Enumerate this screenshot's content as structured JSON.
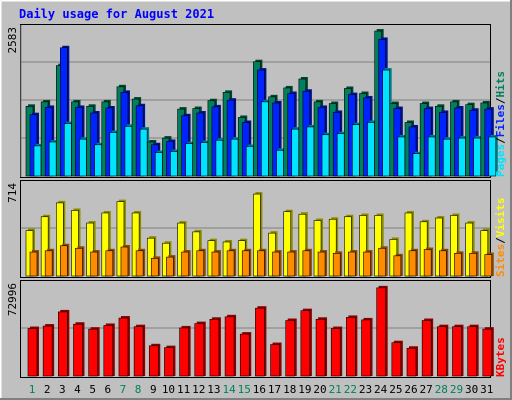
{
  "chart_data": [
    {
      "type": "bar",
      "title": "Daily usage for August 2021",
      "categories": [
        "1",
        "2",
        "3",
        "4",
        "5",
        "6",
        "7",
        "8",
        "9",
        "10",
        "11",
        "12",
        "13",
        "14",
        "15",
        "16",
        "17",
        "18",
        "19",
        "20",
        "21",
        "22",
        "23",
        "24",
        "25",
        "26",
        "27",
        "28",
        "29",
        "30",
        "31"
      ],
      "weekend_categories": [
        "1",
        "7",
        "8",
        "14",
        "15",
        "21",
        "22",
        "28",
        "29"
      ],
      "ymax_label": "2583",
      "ylim": [
        0,
        2583
      ],
      "grid": true,
      "series": [
        {
          "name": "Hits",
          "color": "#00805c",
          "values": [
            1250,
            1330,
            1980,
            1330,
            1250,
            1330,
            1600,
            1380,
            610,
            680,
            1200,
            1210,
            1350,
            1500,
            1050,
            2050,
            1420,
            1580,
            1740,
            1330,
            1300,
            1570,
            1480,
            2600,
            1300,
            960,
            1300,
            1250,
            1330,
            1280,
            1310
          ]
        },
        {
          "name": "Files",
          "color": "#0024ff",
          "values": [
            1100,
            1230,
            2300,
            1230,
            1130,
            1220,
            1500,
            1260,
            560,
            620,
            1080,
            1130,
            1240,
            1360,
            960,
            1900,
            1310,
            1480,
            1520,
            1230,
            1140,
            1460,
            1400,
            2450,
            1210,
            880,
            1210,
            1140,
            1220,
            1180,
            1200
          ]
        },
        {
          "name": "Pages",
          "color": "#00e4ff",
          "values": [
            540,
            610,
            940,
            660,
            560,
            780,
            890,
            840,
            420,
            440,
            580,
            600,
            640,
            660,
            530,
            1330,
            460,
            840,
            880,
            740,
            760,
            920,
            960,
            1900,
            700,
            400,
            700,
            660,
            680,
            680,
            700
          ]
        }
      ]
    },
    {
      "type": "bar",
      "ymax_label": "714",
      "ylim": [
        0,
        714
      ],
      "grid": true,
      "series": [
        {
          "name": "Visits",
          "color": "#ffff00",
          "values": [
            360,
            470,
            580,
            520,
            420,
            500,
            590,
            500,
            300,
            260,
            420,
            350,
            280,
            270,
            280,
            650,
            340,
            510,
            490,
            440,
            450,
            470,
            480,
            480,
            290,
            500,
            430,
            460,
            480,
            420,
            360
          ]
        },
        {
          "name": "Sites",
          "color": "#ff8c00",
          "values": [
            190,
            200,
            240,
            220,
            190,
            200,
            230,
            200,
            140,
            150,
            190,
            200,
            190,
            200,
            200,
            200,
            190,
            190,
            200,
            190,
            180,
            190,
            190,
            220,
            160,
            200,
            210,
            200,
            180,
            180,
            170
          ]
        }
      ]
    },
    {
      "type": "bar",
      "ymax_label": "72996",
      "ylim": [
        0,
        72996
      ],
      "grid": true,
      "series": [
        {
          "name": "KBytes",
          "color": "#ff0000",
          "values": [
            38500,
            40500,
            52000,
            42000,
            38000,
            41000,
            47000,
            40000,
            24500,
            23000,
            39000,
            42500,
            46000,
            48000,
            34000,
            55000,
            25500,
            45000,
            53000,
            46000,
            38500,
            47500,
            45500,
            71500,
            27000,
            22500,
            45000,
            40000,
            40000,
            40000,
            38000
          ]
        }
      ]
    }
  ],
  "legend": {
    "hits": "Hits",
    "files": "Files",
    "pages": "Pages",
    "visits": "Visits",
    "sites": "Sites",
    "kbytes": "KBytes",
    "sep": "/"
  }
}
